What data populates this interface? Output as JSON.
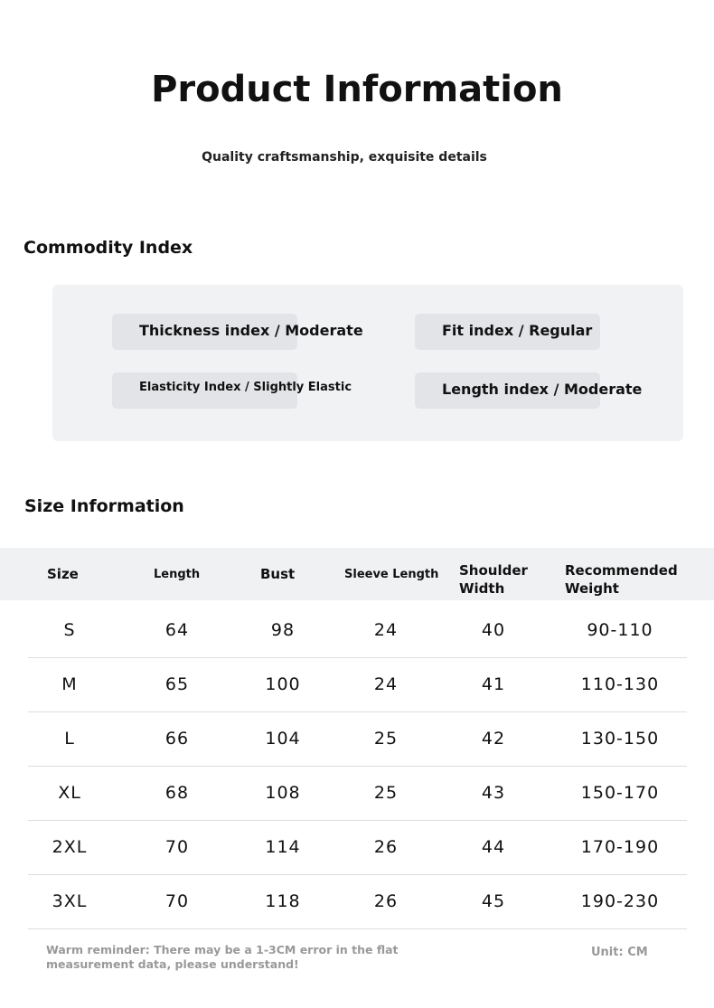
{
  "header": {
    "title": "Product Information",
    "subtitle": "Quality craftsmanship, exquisite details"
  },
  "commodity": {
    "title": "Commodity Index",
    "items": [
      "Thickness index / Moderate",
      "Fit index / Regular",
      "Elasticity Index / Slightly Elastic",
      "Length index / Moderate"
    ]
  },
  "size": {
    "title": "Size Information",
    "table": {
      "columns": [
        "Size",
        "Length",
        "Bust",
        "Sleeve Length",
        "Shoulder Width",
        "Recommended Weight"
      ],
      "rows": [
        [
          "S",
          64,
          98,
          24,
          40,
          "90-110"
        ],
        [
          "M",
          65,
          100,
          24,
          41,
          "110-130"
        ],
        [
          "L",
          66,
          104,
          25,
          42,
          "130-150"
        ],
        [
          "XL",
          68,
          108,
          25,
          43,
          "150-170"
        ],
        [
          "2XL",
          70,
          114,
          26,
          44,
          "170-190"
        ],
        [
          "3XL",
          70,
          118,
          26,
          45,
          "190-230"
        ]
      ]
    },
    "note": "Warm reminder: There may be a 1-3CM error in the flat measurement data, please understand!",
    "unit": "Unit: CM"
  }
}
